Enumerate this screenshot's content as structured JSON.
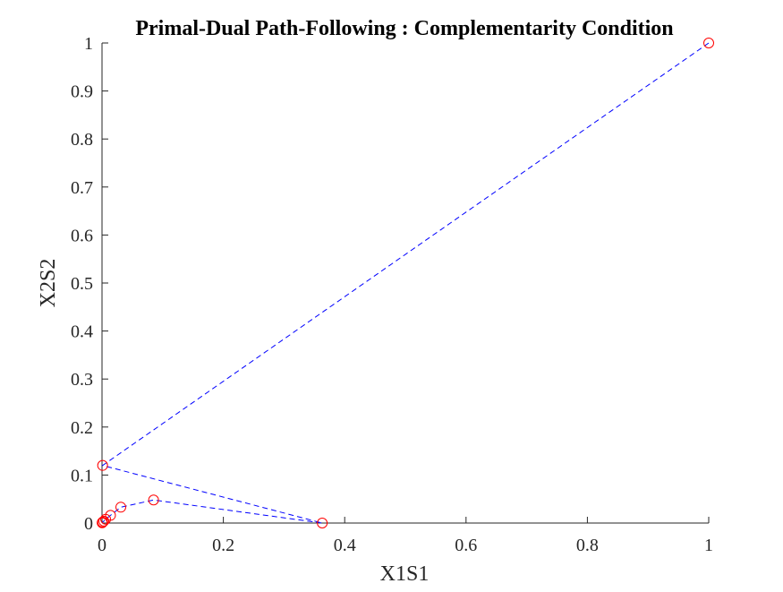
{
  "chart_data": {
    "type": "line",
    "title": "Primal-Dual Path-Following : Complementarity Condition",
    "xlabel": "X1S1",
    "ylabel": "X2S2",
    "xlim": [
      0,
      1
    ],
    "ylim": [
      0,
      1
    ],
    "xticks": [
      0,
      0.2,
      0.4,
      0.6,
      0.8,
      1
    ],
    "yticks": [
      0,
      0.1,
      0.2,
      0.3,
      0.4,
      0.5,
      0.6,
      0.7,
      0.8,
      0.9,
      1
    ],
    "xtick_labels": [
      "0",
      "0.2",
      "0.4",
      "0.6",
      "0.8",
      "1"
    ],
    "ytick_labels": [
      "0",
      "0.1",
      "0.2",
      "0.3",
      "0.4",
      "0.5",
      "0.6",
      "0.7",
      "0.8",
      "0.9",
      "1"
    ],
    "grid": false,
    "series": [
      {
        "line_color": "#0000ff",
        "marker_color": "#ff0000",
        "line_style": "dashed",
        "marker": "circle",
        "x": [
          1,
          0.001,
          0.363,
          0.085,
          0.031,
          0.014,
          0.006,
          0.003,
          0.001,
          0.0005,
          0.0002
        ],
        "y": [
          1,
          0.12,
          0,
          0.048,
          0.033,
          0.016,
          0.008,
          0.004,
          0.002,
          0.001,
          0.0005
        ]
      }
    ]
  }
}
